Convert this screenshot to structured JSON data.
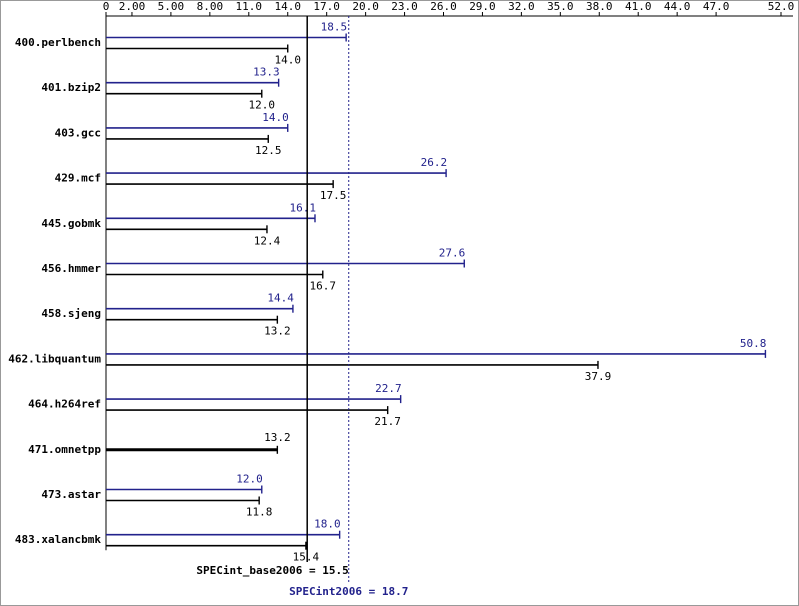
{
  "chart_data": {
    "type": "hbar",
    "categories": [
      "400.perlbench",
      "401.bzip2",
      "403.gcc",
      "429.mcf",
      "445.gobmk",
      "456.hmmer",
      "458.sjeng",
      "462.libquantum",
      "464.h264ref",
      "471.omnetpp",
      "473.astar",
      "483.xalancbmk"
    ],
    "series": [
      {
        "color": "#22228c",
        "values": [
          18.5,
          13.3,
          14.0,
          26.2,
          16.1,
          27.6,
          14.4,
          50.8,
          22.7,
          null,
          12.0,
          18.0
        ],
        "value_labels": [
          "18.5",
          "13.3",
          "14.0",
          "26.2",
          "16.1",
          "27.6",
          "14.4",
          "50.8",
          "22.7",
          null,
          "12.0",
          "18.0"
        ]
      },
      {
        "color": "#000000",
        "values": [
          14.0,
          12.0,
          12.5,
          17.5,
          12.4,
          16.7,
          13.2,
          37.9,
          21.7,
          13.2,
          11.8,
          15.4
        ],
        "value_labels": [
          "14.0",
          "12.0",
          "12.5",
          "17.5",
          "12.4",
          "16.7",
          "13.2",
          "37.9",
          "21.7",
          "13.2",
          "11.8",
          "15.4"
        ]
      }
    ],
    "xlim": [
      0,
      52
    ],
    "xticks": [
      0,
      {
        "value": 2,
        "label": "2.00"
      },
      {
        "value": 5,
        "label": "5.00"
      },
      {
        "value": 8,
        "label": "8.00"
      },
      {
        "value": 11,
        "label": "11.0"
      },
      {
        "value": 14,
        "label": "14.0"
      },
      {
        "value": 17,
        "label": "17.0"
      },
      {
        "value": 20,
        "label": "20.0"
      },
      {
        "value": 23,
        "label": "23.0"
      },
      {
        "value": 26,
        "label": "26.0"
      },
      {
        "value": 29,
        "label": "29.0"
      },
      {
        "value": 32,
        "label": "32.0"
      },
      {
        "value": 35,
        "label": "35.0"
      },
      {
        "value": 38,
        "label": "38.0"
      },
      {
        "value": 41,
        "label": "41.0"
      },
      {
        "value": 44,
        "label": "44.0"
      },
      {
        "value": 47,
        "label": "47.0"
      },
      {
        "value": 52,
        "label": "52.0"
      }
    ],
    "reference_lines": [
      {
        "label": "SPECint_base2006 = 15.5",
        "value": 15.5,
        "color": "#000000",
        "style": "solid"
      },
      {
        "label": "SPECint2006 = 18.7",
        "value": 18.7,
        "color": "#22228c",
        "style": "dotted"
      }
    ]
  }
}
